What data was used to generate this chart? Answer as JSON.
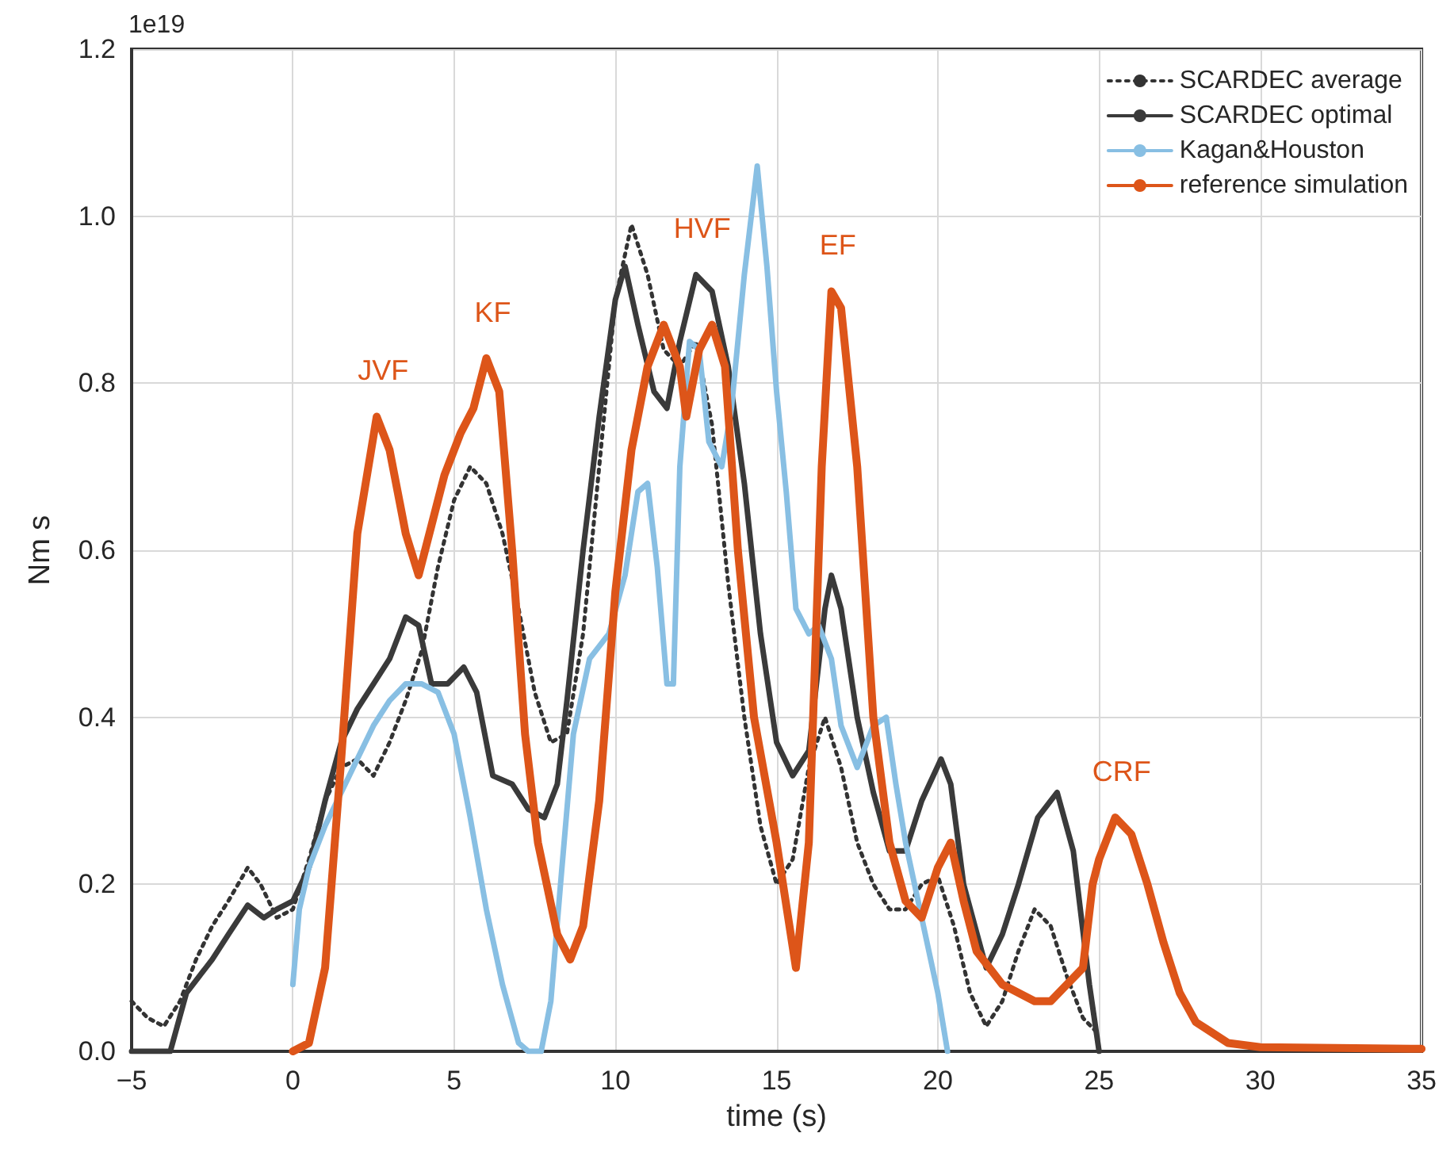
{
  "chart_data": {
    "type": "line",
    "xlabel": "time (s)",
    "ylabel": "Nm s",
    "annotations": [
      "1e19",
      {
        "text": "JVF",
        "x": 2.6,
        "y": 0.76
      },
      {
        "text": "KF",
        "x": 6,
        "y": 0.83
      },
      {
        "text": "HVF",
        "x": 12.5,
        "y": 0.93
      },
      {
        "text": "EF",
        "x": 16.7,
        "y": 0.91
      },
      {
        "text": "CRF",
        "x": 25.5,
        "y": 0.28
      }
    ],
    "xlim": [
      -5,
      35
    ],
    "xticks": [
      {
        "value": -5,
        "label": "−5"
      },
      0,
      5,
      10,
      15,
      20,
      25,
      30,
      35
    ],
    "ylim": [
      0,
      1.2
    ],
    "yticks": [
      {
        "value": 0,
        "label": "0.0"
      },
      {
        "value": 0.2,
        "label": "0.2"
      },
      {
        "value": 0.4,
        "label": "0.4"
      },
      {
        "value": 0.6,
        "label": "0.6"
      },
      {
        "value": 0.8,
        "label": "0.8"
      },
      {
        "value": 1,
        "label": "1.0"
      },
      {
        "value": 1.2,
        "label": "1.2"
      }
    ],
    "grid": true,
    "legend": "top right",
    "marker": "none",
    "series": [
      {
        "name": "SCARDEC average",
        "color": "#333333",
        "line_style": "dotted",
        "x": [
          -5,
          -4.5,
          -4,
          -3.5,
          -3,
          -2.5,
          -2,
          -1.4,
          -1,
          -0.5,
          0,
          0.5,
          1,
          1.5,
          2,
          2.5,
          3,
          3.5,
          4,
          4.5,
          5,
          5.5,
          6,
          6.5,
          7,
          7.5,
          8,
          8.5,
          9,
          9.5,
          10,
          10.5,
          11,
          11.5,
          12,
          12.5,
          13,
          13.5,
          14,
          14.5,
          15,
          15.5,
          16,
          16.5,
          17,
          17.5,
          18,
          18.5,
          19,
          19.5,
          20,
          20.5,
          21,
          21.5,
          22,
          22.5,
          23,
          23.5,
          24,
          24.5,
          25
        ],
        "values": [
          0.06,
          0.04,
          0.03,
          0.06,
          0.11,
          0.15,
          0.18,
          0.22,
          0.2,
          0.16,
          0.17,
          0.23,
          0.3,
          0.34,
          0.35,
          0.33,
          0.37,
          0.42,
          0.48,
          0.58,
          0.66,
          0.7,
          0.68,
          0.62,
          0.53,
          0.43,
          0.37,
          0.38,
          0.5,
          0.7,
          0.9,
          0.99,
          0.93,
          0.84,
          0.82,
          0.85,
          0.75,
          0.56,
          0.4,
          0.27,
          0.2,
          0.23,
          0.34,
          0.4,
          0.34,
          0.25,
          0.2,
          0.17,
          0.17,
          0.2,
          0.21,
          0.15,
          0.07,
          0.03,
          0.06,
          0.12,
          0.17,
          0.15,
          0.09,
          0.04,
          0.02
        ]
      },
      {
        "name": "SCARDEC optimal",
        "color": "#3a3a3a",
        "line_style": "solid",
        "x": [
          -5,
          -3.8,
          -3.3,
          -2.5,
          -2,
          -1.4,
          -0.9,
          -0.5,
          0,
          0.5,
          1,
          1.5,
          2,
          2.5,
          3,
          3.5,
          3.9,
          4.3,
          4.8,
          5.3,
          5.7,
          6.2,
          6.8,
          7.3,
          7.8,
          8.2,
          8.5,
          9,
          9.5,
          10,
          10.3,
          10.7,
          11.2,
          11.6,
          12,
          12.5,
          13,
          13.5,
          14,
          14.5,
          15,
          15.5,
          16,
          16.5,
          16.7,
          17,
          17.5,
          18,
          18.5,
          19,
          19.5,
          20.1,
          20.4,
          20.8,
          21.5,
          22,
          22.5,
          23.1,
          23.7,
          24.2,
          24.7,
          25
        ],
        "values": [
          0,
          0,
          0.07,
          0.11,
          0.14,
          0.175,
          0.16,
          0.17,
          0.18,
          0.22,
          0.3,
          0.37,
          0.41,
          0.44,
          0.47,
          0.52,
          0.51,
          0.44,
          0.44,
          0.46,
          0.43,
          0.33,
          0.32,
          0.29,
          0.28,
          0.32,
          0.42,
          0.6,
          0.76,
          0.9,
          0.94,
          0.87,
          0.79,
          0.77,
          0.85,
          0.93,
          0.91,
          0.82,
          0.68,
          0.5,
          0.37,
          0.33,
          0.36,
          0.53,
          0.57,
          0.53,
          0.4,
          0.31,
          0.24,
          0.24,
          0.3,
          0.35,
          0.32,
          0.2,
          0.1,
          0.14,
          0.2,
          0.28,
          0.31,
          0.24,
          0.08,
          0
        ]
      },
      {
        "name": "Kagan&Houston",
        "color": "#88bfe3",
        "line_style": "solid",
        "x": [
          0,
          0.2,
          0.5,
          1,
          1.5,
          2,
          2.5,
          3,
          3.5,
          4,
          4.5,
          5,
          5.5,
          6,
          6.5,
          7,
          7.3,
          7.7,
          8,
          8.3,
          8.7,
          9.2,
          9.8,
          10.3,
          10.7,
          11,
          11.3,
          11.6,
          11.8,
          12,
          12.3,
          12.6,
          12.9,
          13.3,
          13.6,
          14,
          14.4,
          14.7,
          15,
          15.3,
          15.6,
          16,
          16.3,
          16.7,
          17,
          17.5,
          18,
          18.4,
          18.7,
          19,
          19.5,
          20,
          20.3
        ],
        "values": [
          0.08,
          0.17,
          0.22,
          0.27,
          0.31,
          0.35,
          0.39,
          0.42,
          0.44,
          0.44,
          0.43,
          0.38,
          0.28,
          0.17,
          0.08,
          0.01,
          0,
          0,
          0.06,
          0.2,
          0.38,
          0.47,
          0.5,
          0.57,
          0.67,
          0.68,
          0.58,
          0.44,
          0.44,
          0.7,
          0.85,
          0.84,
          0.73,
          0.7,
          0.77,
          0.93,
          1.06,
          0.94,
          0.79,
          0.67,
          0.53,
          0.5,
          0.51,
          0.47,
          0.39,
          0.34,
          0.39,
          0.4,
          0.32,
          0.25,
          0.16,
          0.07,
          0
        ]
      },
      {
        "name": "reference simulation",
        "color": "#dd5519",
        "line_style": "solid",
        "x": [
          0,
          0.5,
          1,
          1.5,
          2,
          2.6,
          3,
          3.5,
          3.9,
          4.3,
          4.7,
          5.2,
          5.6,
          6,
          6.4,
          6.8,
          7.2,
          7.6,
          8.2,
          8.6,
          9,
          9.5,
          10,
          10.5,
          11,
          11.5,
          12,
          12.2,
          12.6,
          13,
          13.4,
          13.8,
          14.3,
          15,
          15.6,
          16,
          16.4,
          16.7,
          17,
          17.5,
          18,
          18.5,
          19,
          19.5,
          20,
          20.4,
          20.8,
          21.2,
          22,
          23,
          23.5,
          24,
          24.5,
          24.8,
          25,
          25.5,
          26,
          26.5,
          27,
          27.5,
          28,
          29,
          30,
          35
        ],
        "values": [
          0,
          0.01,
          0.1,
          0.35,
          0.62,
          0.76,
          0.72,
          0.62,
          0.57,
          0.63,
          0.69,
          0.74,
          0.77,
          0.83,
          0.79,
          0.6,
          0.38,
          0.25,
          0.14,
          0.11,
          0.15,
          0.3,
          0.55,
          0.72,
          0.82,
          0.87,
          0.82,
          0.76,
          0.84,
          0.87,
          0.82,
          0.6,
          0.4,
          0.25,
          0.1,
          0.25,
          0.7,
          0.91,
          0.89,
          0.7,
          0.4,
          0.25,
          0.18,
          0.16,
          0.22,
          0.25,
          0.18,
          0.12,
          0.08,
          0.06,
          0.06,
          0.08,
          0.1,
          0.2,
          0.23,
          0.28,
          0.26,
          0.2,
          0.13,
          0.07,
          0.035,
          0.01,
          0.005,
          0.003
        ]
      }
    ]
  }
}
